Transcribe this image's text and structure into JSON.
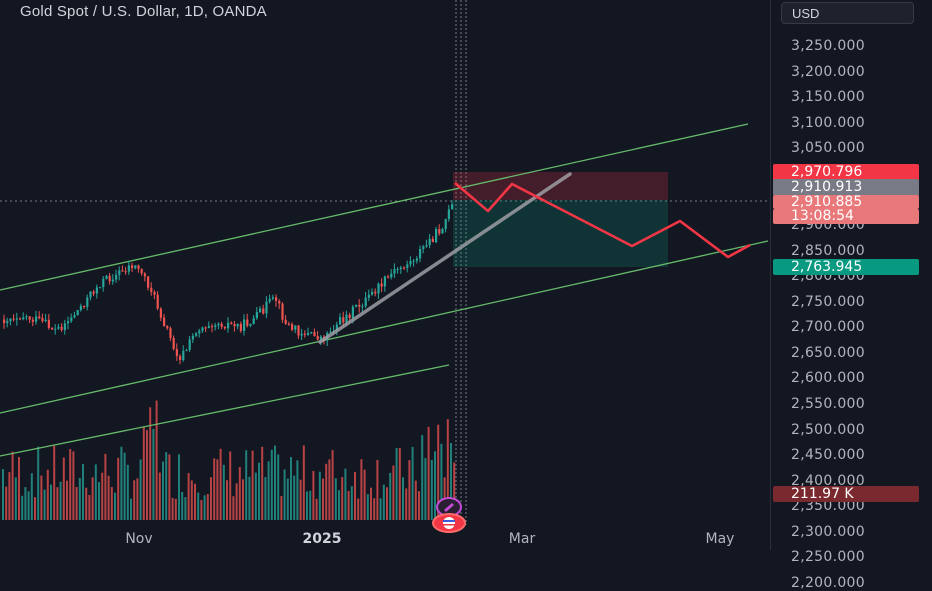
{
  "header": {
    "title": "Gold Spot / U.S. Dollar, 1D, OANDA"
  },
  "price_axis": {
    "currency": "USD",
    "ticks": [
      "3,250.000",
      "3,200.000",
      "3,150.000",
      "3,100.000",
      "3,050.000",
      "3,000.000",
      "2,950.000",
      "2,900.000",
      "2,850.000",
      "2,800.000",
      "2,750.000",
      "2,700.000",
      "2,650.000",
      "2,600.000",
      "2,550.000",
      "2,500.000",
      "2,450.000",
      "2,400.000",
      "2,350.000",
      "2,300.000",
      "2,250.000",
      "2,200.000"
    ],
    "labels": {
      "stop_loss": "2,970.796",
      "entry": "2,910.913",
      "last_price": "2,910.885",
      "countdown": "13:08:54",
      "target": "2,763.945",
      "volume": "211.97 K"
    }
  },
  "time_axis": {
    "labels": [
      "Nov",
      "2025",
      "Mar",
      "May"
    ]
  },
  "colors": {
    "background": "#131722",
    "up_candle": "#26a69a",
    "down_candle": "#ef5350",
    "channel_lines": "#66bb6a",
    "forecast_path": "#f23645",
    "trend_line": "#9e9ea3",
    "stop_label": "#f23645",
    "entry_label": "#787b86",
    "last_label": "#e8787a",
    "target_label": "#089981",
    "volume_label": "#7a2a2e"
  },
  "icons": [
    "pencil-event-icon",
    "us-flag-event-icon"
  ]
}
